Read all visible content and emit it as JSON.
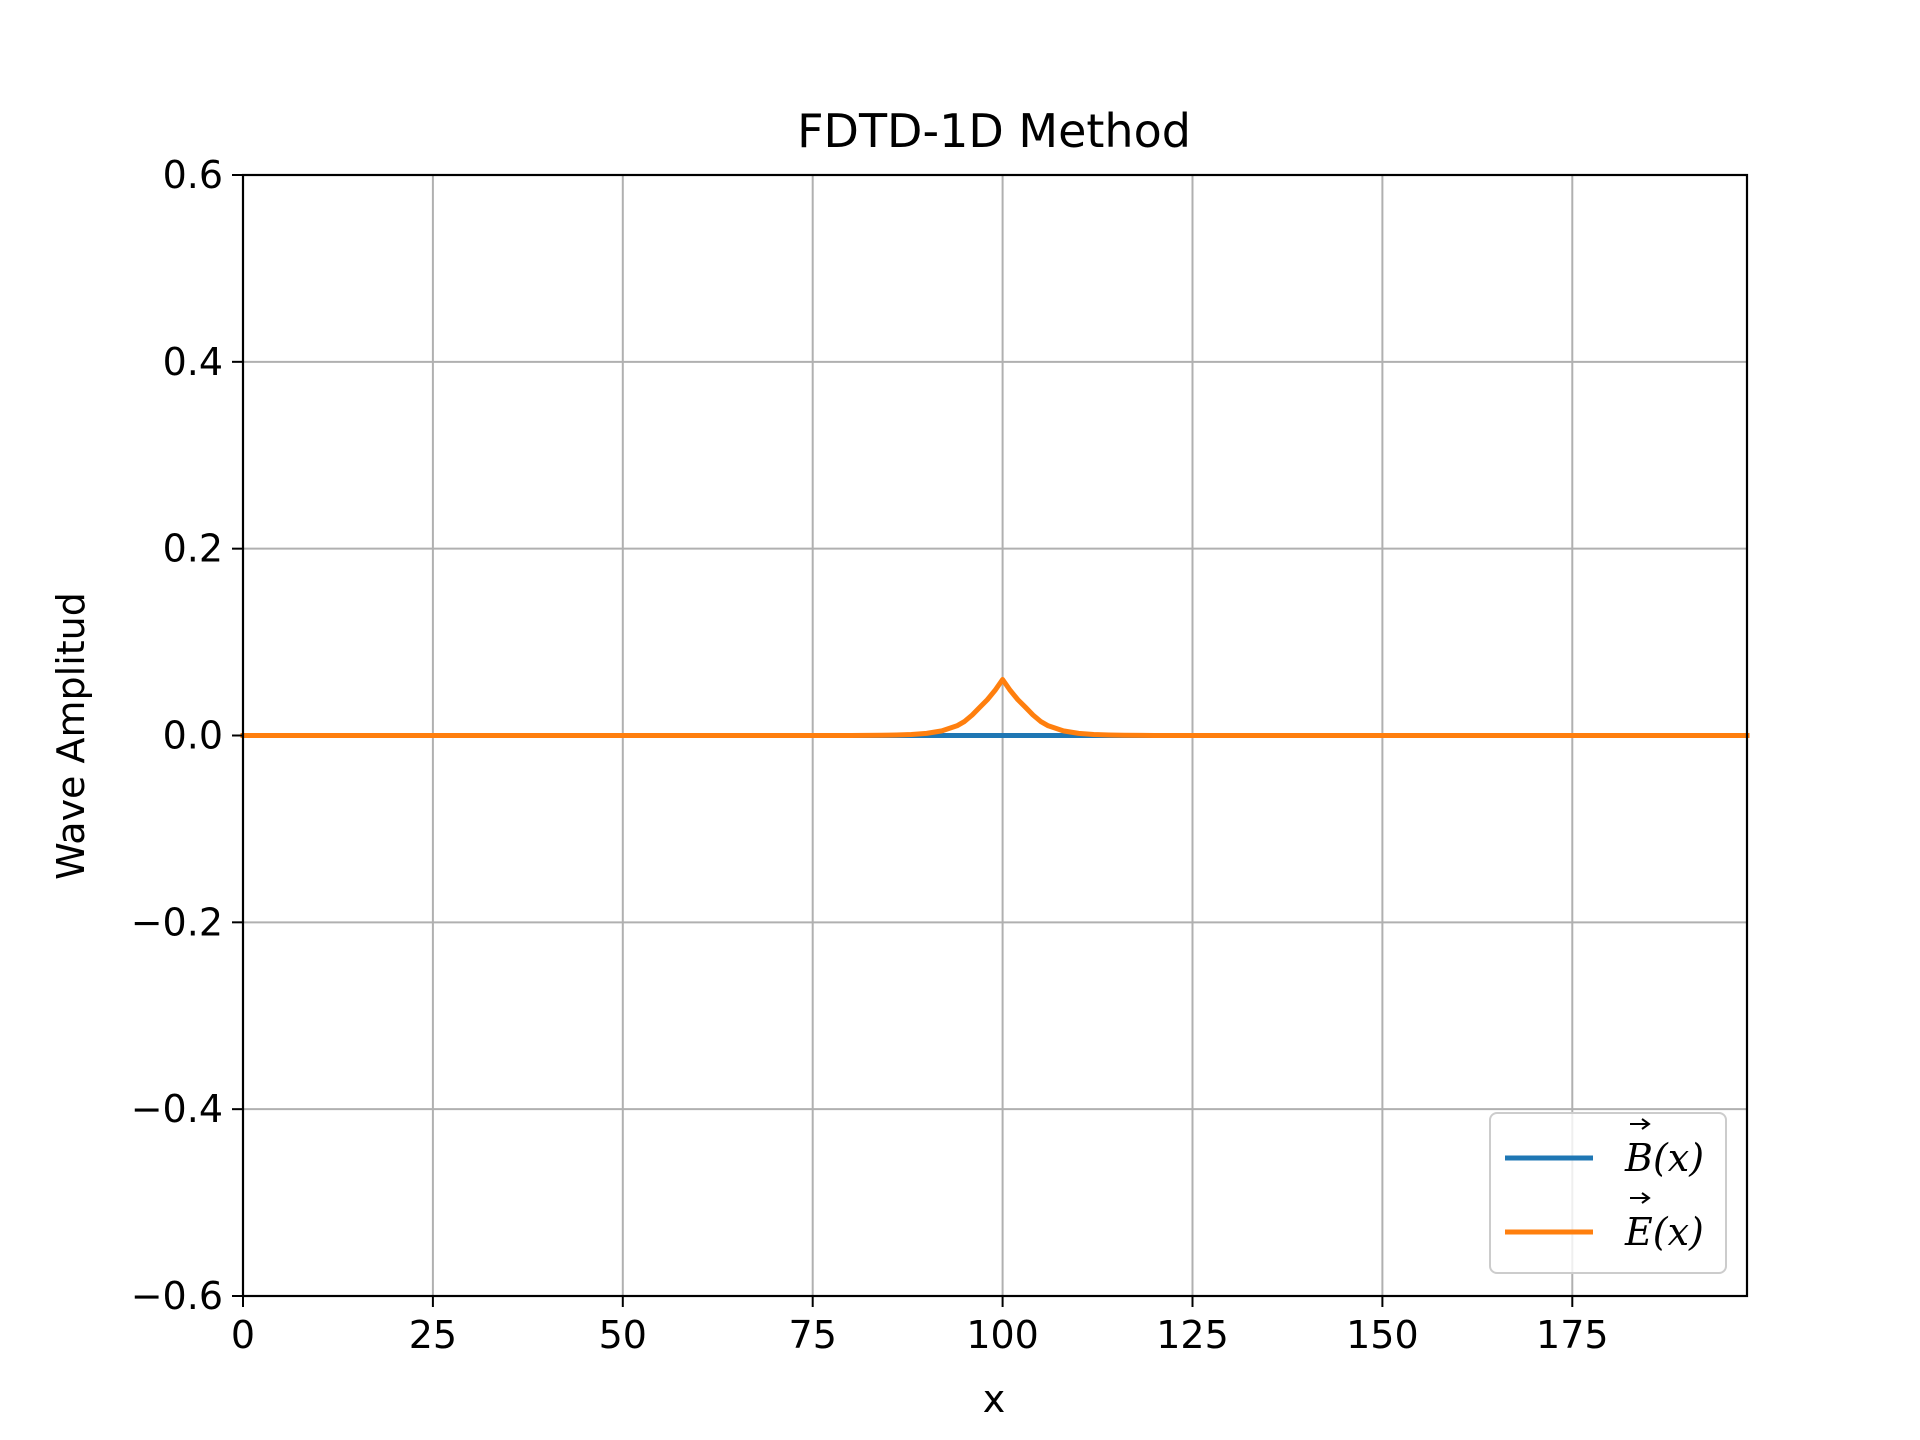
{
  "chart_data": {
    "type": "line",
    "title": "FDTD-1D Method",
    "xlabel": "x",
    "ylabel": "Wave Amplitud",
    "xlim": [
      0,
      198
    ],
    "ylim": [
      -0.6,
      0.6
    ],
    "xticks": [
      0,
      25,
      50,
      75,
      100,
      125,
      150,
      175
    ],
    "xtick_labels": [
      "0",
      "25",
      "50",
      "75",
      "100",
      "125",
      "150",
      "175"
    ],
    "yticks": [
      -0.6,
      -0.4,
      -0.2,
      0.0,
      0.2,
      0.4,
      0.6
    ],
    "ytick_labels": [
      "−0.6",
      "−0.4",
      "−0.2",
      "0.0",
      "0.2",
      "0.4",
      "0.6"
    ],
    "grid": true,
    "legend_position": "lower-right",
    "series": [
      {
        "name": "B⃗(x)",
        "legend_base": "B",
        "legend_suffix": "(x)",
        "color": "#1f77b4",
        "x": [
          0,
          198
        ],
        "y": [
          0,
          0
        ]
      },
      {
        "name": "E⃗(x)",
        "legend_base": "E",
        "legend_suffix": "(x)",
        "color": "#ff7f0e",
        "x": [
          0,
          80,
          84,
          86,
          88,
          90,
          92,
          94,
          95,
          96,
          97,
          98,
          99,
          100,
          101,
          102,
          103,
          104,
          105,
          106,
          108,
          110,
          112,
          114,
          116,
          120,
          198
        ],
        "y": [
          0,
          0,
          0.0002,
          0.0005,
          0.0011,
          0.0023,
          0.0049,
          0.0104,
          0.0151,
          0.0219,
          0.0303,
          0.0384,
          0.0483,
          0.06,
          0.0483,
          0.0384,
          0.0303,
          0.0219,
          0.0151,
          0.0104,
          0.0049,
          0.0023,
          0.0011,
          0.0005,
          0.0002,
          0,
          0
        ]
      }
    ]
  }
}
